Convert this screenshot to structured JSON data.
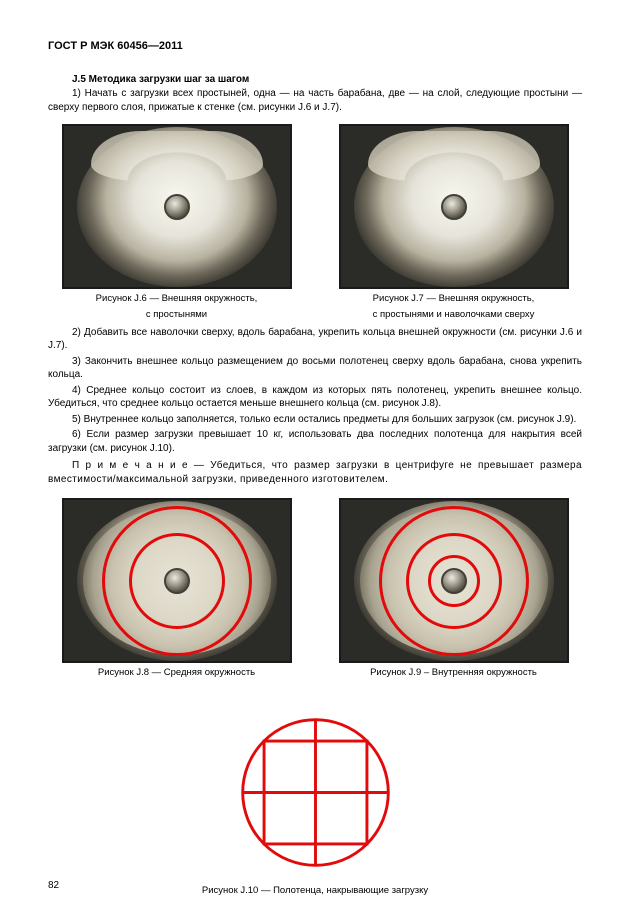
{
  "header": "ГОСТ Р МЭК 60456—2011",
  "section_title": "J.5 Методика загрузки шаг за шагом",
  "step1": "1) Начать с загрузки всех простыней, одна — на часть барабана, две — на слой, следующие простыни — сверху первого слоя, прижатые к стенке (см. рисунки J.6 и J.7).",
  "fig_j6_cap1": "Рисунок J.6 — Внешняя окружность,",
  "fig_j6_cap2": "с простынями",
  "fig_j7_cap1": "Рисунок J.7 — Внешняя окружность,",
  "fig_j7_cap2": "с простынями и наволочками сверху",
  "step2": "2) Добавить  все  наволочки  сверху,  вдоль барабана, укрепить кольца внешней окружности (см. рисунки J.6 и J.7).",
  "step3": "3) Закончить внешнее кольцо размещением до восьми полотенец сверху вдоль барабана, снова укрепить кольца.",
  "step4": "4) Среднее кольцо состоит из слоев, в каждом из которых пять полотенец, укрепить внешнее кольцо. Убедиться, что среднее кольцо остается меньше внешнего кольца (см. рисунок J.8).",
  "step5": "5) Внутреннее кольцо заполняется, только если остались предметы для больших загрузок (см. рисунок J.9).",
  "step6": "6) Если размер загрузки превышает 10 кг, использовать два последних полотенца для накрытия всей загрузки (см. рисунок J.10).",
  "note": "П р и м е ч а н и е — Убедиться, что размер загрузки в центрифуге не превышает размера вместимости/максимальной загрузки, приведенного изготовителем.",
  "fig_j8_cap": "Рисунок J.8 — Средняя окружность",
  "fig_j9_cap": "Рисунок J.9 – Внутренняя окружность",
  "fig_j10_cap": "Рисунок J.10 — Полотенца, накрывающие загрузку",
  "page_num": "82",
  "ring_color": "#e20a0a",
  "rings_j8": {
    "outer_d": 150,
    "inner_d": 96
  },
  "rings_j9": {
    "outer_d": 150,
    "mid_d": 96,
    "inner_d": 52
  },
  "schematic": {
    "circle_d": 150,
    "stroke": "#e20a0a",
    "stroke_w": 3
  }
}
